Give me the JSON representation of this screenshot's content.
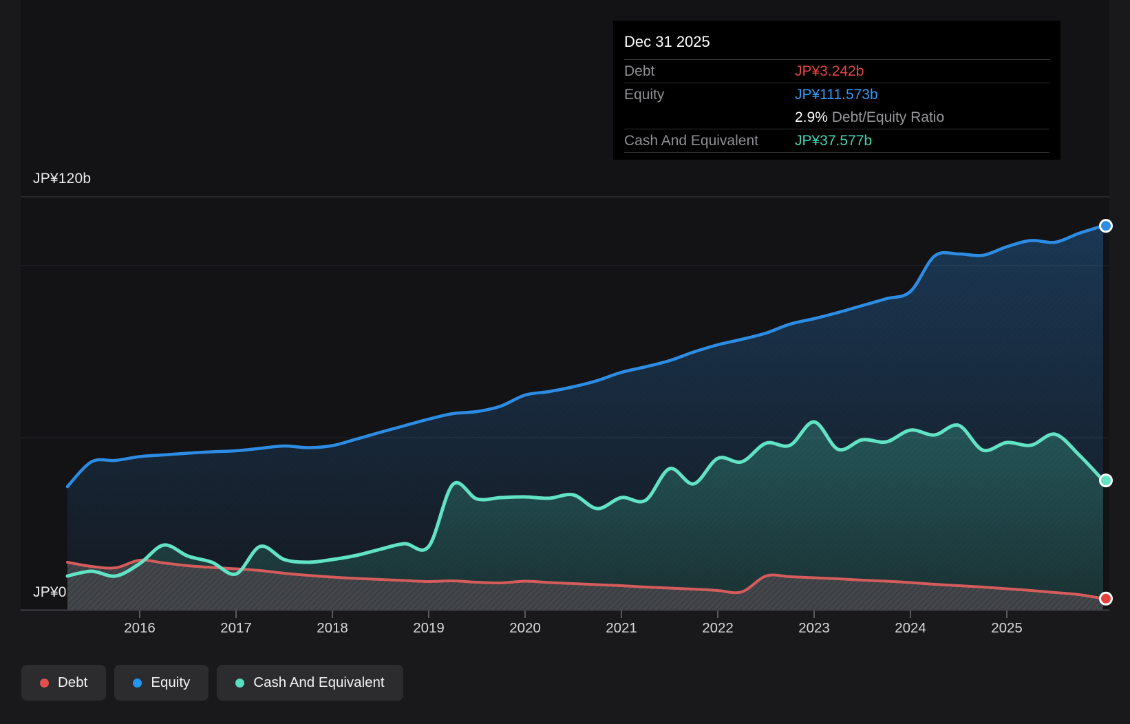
{
  "tooltip": {
    "date": "Dec 31 2025",
    "debt_label": "Debt",
    "debt_value": "JP¥3.242b",
    "equity_label": "Equity",
    "equity_value": "JP¥111.573b",
    "ratio_value": "2.9%",
    "ratio_label": "Debt/Equity Ratio",
    "cash_label": "Cash And Equivalent",
    "cash_value": "JP¥37.577b"
  },
  "y_axis": {
    "top": "JP¥120b",
    "zero": "JP¥0"
  },
  "x_axis": {
    "years": [
      "2016",
      "2017",
      "2018",
      "2019",
      "2020",
      "2021",
      "2022",
      "2023",
      "2024",
      "2025"
    ]
  },
  "legend": {
    "items": [
      {
        "label": "Debt"
      },
      {
        "label": "Equity"
      },
      {
        "label": "Cash And Equivalent"
      }
    ]
  },
  "colors": {
    "background": "#19191b",
    "plot_background": "#131316",
    "debt_line": "#d65c5c",
    "debt_dot": "#e4403d",
    "equity_line": "#2d8ce4",
    "cash_line": "#62e3c5",
    "legend_debt": "#e0524e",
    "legend_equity": "#1f97f3",
    "legend_cash": "#57e0bf",
    "tooltip_debt": "#e04543",
    "tooltip_equity": "#3199f3",
    "tooltip_cash": "#41d7b6"
  },
  "chart_data": {
    "type": "area",
    "unit": "JP¥ billions",
    "x_start": 2015.25,
    "x_step": 0.25,
    "x_end": 2026.0,
    "ylim": [
      0,
      120
    ],
    "gridline_values_b": [
      120,
      100,
      50,
      0
    ],
    "x_tick_years": [
      2016,
      2017,
      2018,
      2019,
      2020,
      2021,
      2022,
      2023,
      2024,
      2025
    ],
    "series": [
      {
        "name": "Equity",
        "values": [
          35.8,
          43.0,
          43.4,
          44.5,
          45.0,
          45.5,
          45.9,
          46.2,
          46.9,
          47.6,
          47.1,
          47.7,
          49.6,
          51.6,
          53.5,
          55.4,
          57.0,
          57.6,
          59.2,
          62.4,
          63.4,
          64.8,
          66.6,
          69.0,
          70.6,
          72.4,
          74.9,
          77.0,
          78.6,
          80.4,
          83.0,
          84.6,
          86.4,
          88.4,
          90.4,
          92.5,
          102.8,
          103.4,
          103.0,
          105.5,
          107.3,
          106.8,
          109.4,
          111.573
        ]
      },
      {
        "name": "Cash And Equivalent",
        "values": [
          9.8,
          11.2,
          9.8,
          13.4,
          18.8,
          15.6,
          13.8,
          10.4,
          18.4,
          14.6,
          13.8,
          14.6,
          15.8,
          17.6,
          19.2,
          18.4,
          36.4,
          32.2,
          32.6,
          32.8,
          32.4,
          33.4,
          29.4,
          32.6,
          31.8,
          41.0,
          36.6,
          44.0,
          43.0,
          48.4,
          47.8,
          54.6,
          46.6,
          49.4,
          48.8,
          52.2,
          50.8,
          53.6,
          46.4,
          48.6,
          47.8,
          51.0,
          45.0,
          37.577
        ]
      },
      {
        "name": "Debt",
        "values": [
          13.8,
          12.6,
          12.2,
          14.4,
          13.6,
          12.8,
          12.3,
          11.9,
          11.4,
          10.6,
          10.0,
          9.5,
          9.1,
          8.8,
          8.5,
          8.2,
          8.4,
          8.0,
          7.8,
          8.3,
          7.9,
          7.6,
          7.3,
          7.0,
          6.6,
          6.3,
          6.0,
          5.6,
          5.2,
          9.8,
          9.6,
          9.3,
          9.0,
          8.6,
          8.3,
          7.9,
          7.4,
          7.0,
          6.6,
          6.1,
          5.6,
          5.0,
          4.4,
          3.242
        ]
      }
    ],
    "last_point": {
      "date": "Dec 31 2025",
      "equity_b": 111.573,
      "cash_b": 37.577,
      "debt_b": 3.242,
      "debt_equity_ratio_pct": 2.9
    }
  }
}
